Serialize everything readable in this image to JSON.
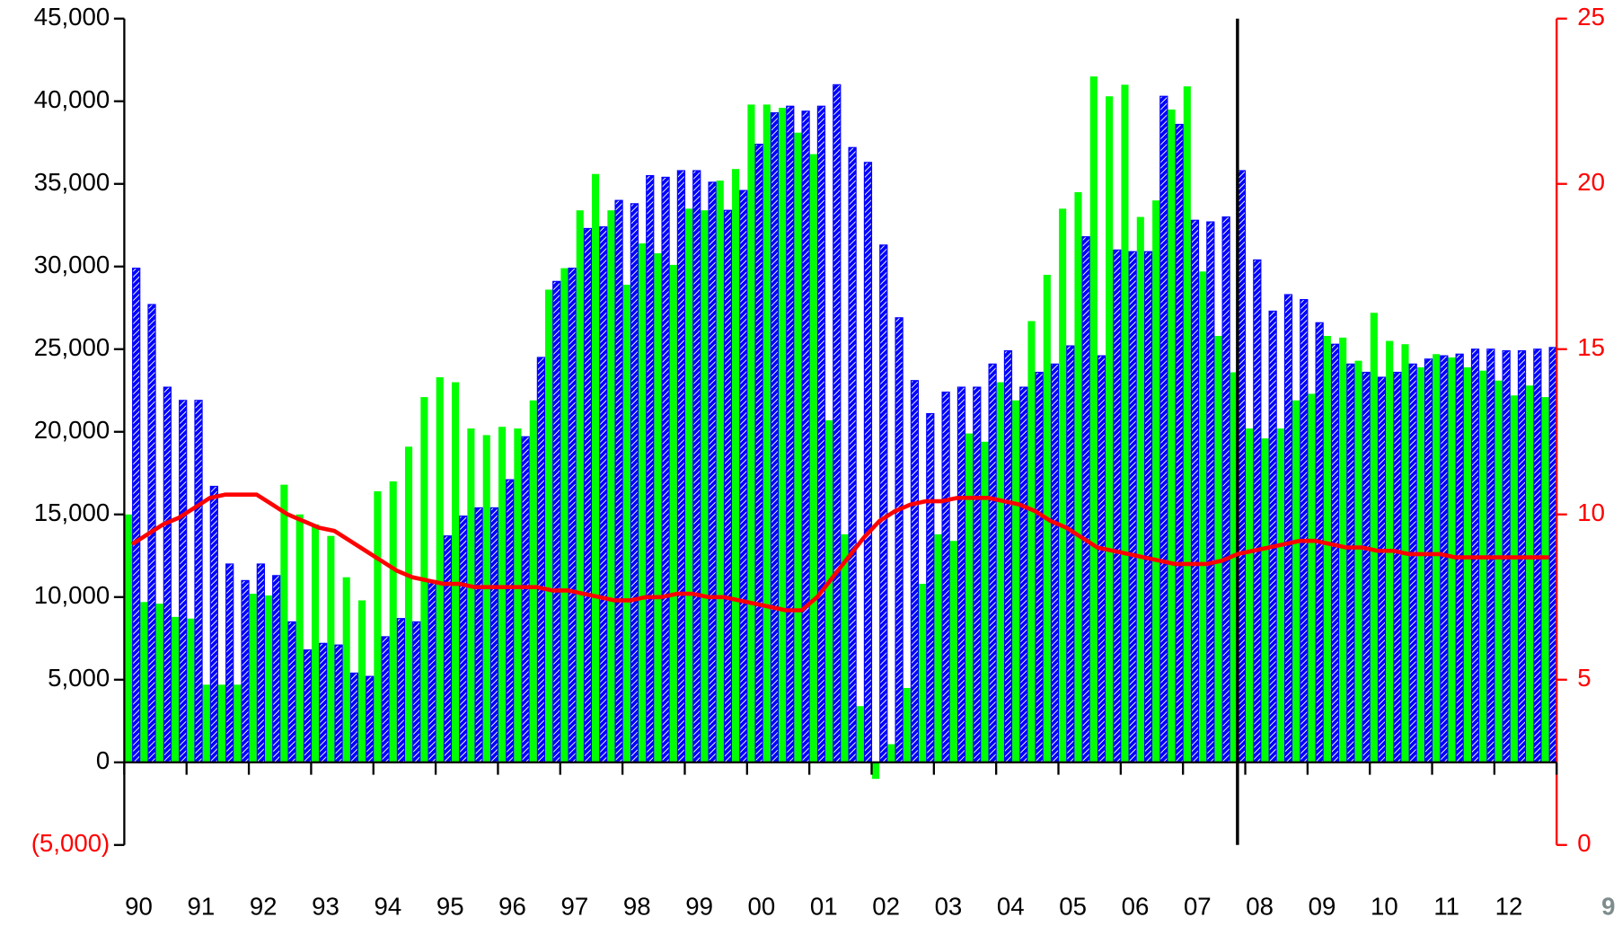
{
  "chart_data": {
    "type": "bar",
    "categories": [
      null,
      null,
      null,
      null,
      null,
      null,
      null,
      null,
      null,
      null,
      null,
      null,
      null,
      null,
      null,
      null,
      null,
      null,
      null,
      null,
      null,
      null,
      null,
      null,
      null,
      null,
      null,
      null,
      null,
      null,
      null,
      null,
      null,
      null,
      null,
      null,
      null,
      null,
      null,
      null,
      null,
      null,
      null,
      null,
      null,
      null,
      null,
      null,
      null,
      null,
      null,
      null,
      null,
      null,
      null,
      null,
      null,
      null,
      null,
      null,
      null,
      null,
      null,
      null,
      null,
      null,
      null,
      null,
      null,
      null,
      null,
      null,
      null,
      null,
      null,
      null,
      null,
      null,
      null,
      null,
      null,
      null,
      null,
      null,
      null,
      null,
      null,
      null,
      null,
      null,
      null,
      null
    ],
    "year_labels": [
      "90",
      "91",
      "92",
      "93",
      "94",
      "95",
      "96",
      "97",
      "98",
      "99",
      "00",
      "01",
      "02",
      "03",
      "04",
      "05",
      "06",
      "07",
      "08",
      "09",
      "10",
      "11",
      "12"
    ],
    "series": [
      {
        "type": "bar",
        "color": "#00ff00",
        "values": [
          15000,
          9700,
          9600,
          8800,
          8700,
          4700,
          4700,
          4700,
          10200,
          10100,
          16800,
          15000,
          14400,
          13700,
          11200,
          9800,
          16400,
          17000,
          19100,
          22100,
          23300,
          23000,
          20200,
          19800,
          20300,
          20200,
          21900,
          28600,
          29900,
          33400,
          35600,
          33400,
          28900,
          31400,
          30800,
          30100,
          33500,
          33400,
          35200,
          35900,
          39800,
          39800,
          39600,
          38100,
          36800,
          20700,
          13800,
          3400,
          -1000,
          1100,
          4500,
          10800,
          13800,
          13400,
          19900,
          19400,
          23000,
          21900,
          26700,
          29500,
          33500,
          34500,
          41500,
          40300,
          41000,
          33000,
          34000,
          39500,
          40900,
          29700,
          25800,
          23600,
          20200,
          19600,
          20200,
          21900,
          22300,
          25800,
          25700,
          24300,
          27200,
          25500,
          25300,
          23900,
          24700,
          24500,
          23900,
          23700,
          23100,
          22200,
          22800,
          22100
        ]
      },
      {
        "type": "bar",
        "color": "#0000ff",
        "hatch": true,
        "values": [
          29900,
          27700,
          22700,
          21900,
          21900,
          16700,
          12000,
          11000,
          12000,
          11300,
          8500,
          6800,
          7200,
          7100,
          5400,
          5200,
          7600,
          8700,
          8500,
          11000,
          13700,
          14900,
          15400,
          15400,
          17100,
          19700,
          24500,
          29100,
          29900,
          32300,
          32400,
          34000,
          33800,
          35500,
          35400,
          35800,
          35800,
          35100,
          33400,
          34600,
          37400,
          39300,
          39700,
          39400,
          39700,
          41000,
          37200,
          36300,
          31300,
          26900,
          23100,
          21100,
          22400,
          22700,
          22700,
          24100,
          24900,
          22700,
          23600,
          24100,
          25200,
          31800,
          24600,
          31000,
          30900,
          30900,
          40300,
          38600,
          32800,
          32700,
          33000,
          35800,
          30400,
          27300,
          28300,
          28000,
          26600,
          25300,
          24100,
          23600,
          23300,
          23600,
          24100,
          24400,
          24600,
          24700,
          25000,
          25000,
          24900,
          24900,
          25000,
          25100
        ]
      },
      {
        "type": "line",
        "axis": "y2",
        "color": "#ff0000",
        "values": [
          9.1,
          9.4,
          9.7,
          9.9,
          10.2,
          10.5,
          10.6,
          10.6,
          10.6,
          10.3,
          10.0,
          9.8,
          9.6,
          9.5,
          9.2,
          8.9,
          8.6,
          8.3,
          8.1,
          8.0,
          7.9,
          7.9,
          7.8,
          7.8,
          7.8,
          7.8,
          7.8,
          7.7,
          7.7,
          7.6,
          7.5,
          7.4,
          7.4,
          7.5,
          7.5,
          7.6,
          7.6,
          7.5,
          7.5,
          7.4,
          7.3,
          7.2,
          7.1,
          7.1,
          7.5,
          8.1,
          8.7,
          9.3,
          9.8,
          10.1,
          10.3,
          10.4,
          10.4,
          10.5,
          10.5,
          10.5,
          10.4,
          10.3,
          10.1,
          9.8,
          9.6,
          9.3,
          9.0,
          8.9,
          8.8,
          8.7,
          8.6,
          8.5,
          8.5,
          8.5,
          8.6,
          8.8,
          8.9,
          9.0,
          9.1,
          9.2,
          9.2,
          9.1,
          9.0,
          9.0,
          8.9,
          8.9,
          8.8,
          8.8,
          8.8,
          8.7,
          8.7,
          8.7,
          8.7,
          8.7,
          8.7,
          8.7
        ]
      }
    ],
    "ylim": [
      -5000,
      45000
    ],
    "yticks": [
      {
        "value": -5000,
        "label": "(5,000)"
      },
      0,
      {
        "value": 5000,
        "label": "5,000"
      },
      {
        "value": 10000,
        "label": "10,000"
      },
      {
        "value": 15000,
        "label": "15,000"
      },
      {
        "value": 20000,
        "label": "20,000"
      },
      {
        "value": 25000,
        "label": "25,000"
      },
      {
        "value": 30000,
        "label": "30,000"
      },
      {
        "value": 35000,
        "label": "35,000"
      },
      {
        "value": 40000,
        "label": "40,000"
      },
      {
        "value": 45000,
        "label": "45,000"
      }
    ],
    "negative_label_color": "#ff0000",
    "y2lim": [
      0,
      25
    ],
    "y2ticks": [
      0,
      5,
      10,
      15,
      20,
      25
    ],
    "y2_color": "#ff0000",
    "vline_category": 71,
    "page_number": "9"
  }
}
